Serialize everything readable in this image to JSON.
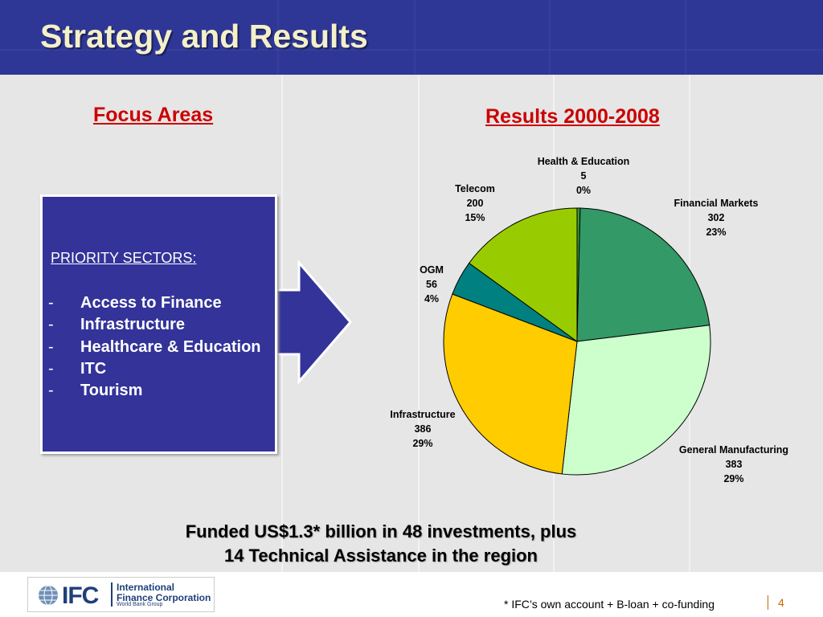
{
  "slide": {
    "title": "Strategy and Results",
    "focus_heading": "Focus Areas",
    "results_heading": "Results 2000-2008",
    "priority_title": "PRIORITY SECTORS:",
    "priority_items": [
      "Access to Finance",
      "Infrastructure",
      "Healthcare & Education",
      "ITC",
      "Tourism"
    ],
    "bullet": "-",
    "funded_line1": "Funded US$1.3* billion in 48 investments, plus",
    "funded_line2": "14 Technical Assistance in the region",
    "footnote": "* IFC’s own account + B-loan + co-funding",
    "page_number": "4"
  },
  "logo": {
    "mark": "IFC",
    "name_line1": "International",
    "name_line2": "Finance Corporation",
    "group": "World Bank Group"
  },
  "colors": {
    "header": "#2f3796",
    "title_text": "#f4f0c8",
    "heading_red": "#cc0000",
    "priority_box": "#333399",
    "accent_orange": "#cc6600"
  },
  "chart_data": {
    "type": "pie",
    "title": "Results 2000-2008",
    "start": "12 o'clock, clockwise",
    "slices": [
      {
        "name": "Health & Education",
        "value": 5,
        "percent": "0%",
        "color": "#3a9a3a"
      },
      {
        "name": "Financial Markets",
        "value": 302,
        "percent": "23%",
        "color": "#339966"
      },
      {
        "name": "General Manufacturing",
        "value": 383,
        "percent": "29%",
        "color": "#ccffcc"
      },
      {
        "name": "Infrastructure",
        "value": 386,
        "percent": "29%",
        "color": "#ffcc00"
      },
      {
        "name": "OGM",
        "value": 56,
        "percent": "4%",
        "color": "#008080"
      },
      {
        "name": "Telecom",
        "value": 200,
        "percent": "15%",
        "color": "#99cc00"
      }
    ]
  }
}
